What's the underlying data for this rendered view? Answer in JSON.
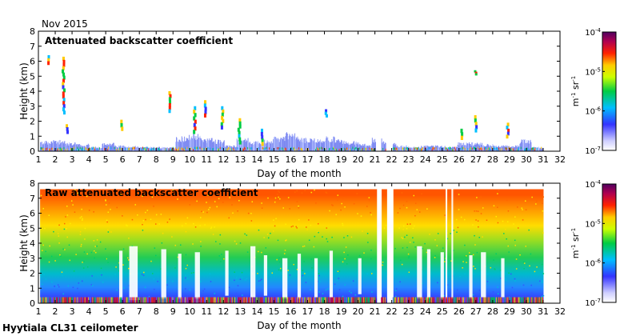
{
  "header": {
    "period": "Nov 2015"
  },
  "footer": {
    "instrument": "Hyytiala CL31 ceilometer"
  },
  "chart_data": [
    {
      "type": "heatmap",
      "title": "Attenuated backscatter coefficient",
      "xlabel": "Day of the month",
      "ylabel": "Height (km)",
      "xlim": [
        1,
        32
      ],
      "ylim": [
        0,
        8
      ],
      "x_ticks": [
        1,
        2,
        3,
        4,
        5,
        6,
        7,
        8,
        9,
        10,
        11,
        12,
        13,
        14,
        15,
        16,
        17,
        18,
        19,
        20,
        21,
        22,
        23,
        24,
        25,
        26,
        27,
        28,
        29,
        30,
        31,
        32
      ],
      "y_ticks": [
        0,
        1,
        2,
        3,
        4,
        5,
        6,
        7,
        8
      ],
      "colorbar": {
        "scale": "log",
        "units": "m⁻¹ sr⁻¹",
        "unit_base": "m",
        "unit_base_exp": "-1",
        "unit_sr": "sr",
        "unit_sr_exp": "-1",
        "ticks": [
          {
            "base": "10",
            "exp": "-4"
          },
          {
            "base": "10",
            "exp": "-5"
          },
          {
            "base": "10",
            "exp": "-6"
          },
          {
            "base": "10",
            "exp": "-7"
          }
        ]
      },
      "data_coverage": {
        "start_day": 1.1,
        "end_day": 31.0,
        "gap_days": [
          [
            21.05,
            21.35
          ],
          [
            21.65,
            22.05
          ]
        ]
      },
      "surface_layer_top_km": [
        0.7,
        0.75,
        0.6,
        0.5,
        0.3,
        0.6,
        0.4,
        0.35,
        0.3,
        0.3,
        0.3,
        1.0,
        1.2,
        0.9,
        0.8,
        0.4,
        0.9,
        0.7,
        0.8,
        1.0,
        1.3,
        0.9,
        0.9,
        1.0,
        0.8,
        0.7,
        0.5,
        0.9,
        0.6,
        0.4,
        0.3,
        0.4,
        0.4,
        0.3,
        0.6,
        0.6,
        0.5,
        0.4,
        0.4,
        0.8,
        0.3
      ],
      "features": [
        {
          "day": 1.55,
          "bottom_km": 5.8,
          "top_km": 6.4
        },
        {
          "day": 2.45,
          "bottom_km": 2.5,
          "top_km": 6.3
        },
        {
          "day": 2.65,
          "bottom_km": 1.2,
          "top_km": 1.8
        },
        {
          "day": 5.9,
          "bottom_km": 1.4,
          "top_km": 2.1
        },
        {
          "day": 8.75,
          "bottom_km": 2.6,
          "top_km": 4.0
        },
        {
          "day": 10.25,
          "bottom_km": 1.2,
          "top_km": 3.0
        },
        {
          "day": 10.9,
          "bottom_km": 2.3,
          "top_km": 3.4
        },
        {
          "day": 11.9,
          "bottom_km": 1.5,
          "top_km": 3.0
        },
        {
          "day": 12.9,
          "bottom_km": 0.5,
          "top_km": 2.2
        },
        {
          "day": 14.25,
          "bottom_km": 0.4,
          "top_km": 1.5
        },
        {
          "day": 18.05,
          "bottom_km": 2.3,
          "top_km": 2.8
        },
        {
          "day": 26.15,
          "bottom_km": 0.8,
          "top_km": 1.5
        },
        {
          "day": 26.95,
          "bottom_km": 1.3,
          "top_km": 2.4
        },
        {
          "day": 26.95,
          "bottom_km": 5.1,
          "top_km": 5.4
        },
        {
          "day": 28.85,
          "bottom_km": 0.9,
          "top_km": 1.9
        }
      ]
    },
    {
      "type": "heatmap",
      "title": "Raw attenuated backscatter coefficient",
      "xlabel": "Day of the month",
      "ylabel": "Height (km)",
      "xlim": [
        1,
        32
      ],
      "ylim": [
        0,
        8
      ],
      "x_ticks": [
        1,
        2,
        3,
        4,
        5,
        6,
        7,
        8,
        9,
        10,
        11,
        12,
        13,
        14,
        15,
        16,
        17,
        18,
        19,
        20,
        21,
        22,
        23,
        24,
        25,
        26,
        27,
        28,
        29,
        30,
        31,
        32
      ],
      "y_ticks": [
        0,
        1,
        2,
        3,
        4,
        5,
        6,
        7,
        8
      ],
      "colorbar": {
        "scale": "log",
        "units": "m⁻¹ sr⁻¹",
        "unit_base": "m",
        "unit_base_exp": "-1",
        "unit_sr": "sr",
        "unit_sr_exp": "-1",
        "ticks": [
          {
            "base": "10",
            "exp": "-4"
          },
          {
            "base": "10",
            "exp": "-5"
          },
          {
            "base": "10",
            "exp": "-6"
          },
          {
            "base": "10",
            "exp": "-7"
          }
        ]
      },
      "data_coverage": {
        "start_day": 1.1,
        "end_day": 31.0,
        "gap_days": [
          [
            21.05,
            21.35
          ],
          [
            21.65,
            22.05
          ]
        ]
      },
      "profile": "noise increasing with height: red/orange near 6-7.5 km, yellow/green mid-levels, blue in the lowest 1 km",
      "white_gaps": [
        {
          "day_start": 5.8,
          "day_end": 6.0,
          "bottom_km": 0.3,
          "top_km": 3.5
        },
        {
          "day_start": 6.4,
          "day_end": 6.9,
          "bottom_km": 0.2,
          "top_km": 3.8
        },
        {
          "day_start": 8.3,
          "day_end": 8.6,
          "bottom_km": 0.3,
          "top_km": 3.6
        },
        {
          "day_start": 9.3,
          "day_end": 9.5,
          "bottom_km": 0.3,
          "top_km": 3.3
        },
        {
          "day_start": 10.3,
          "day_end": 10.6,
          "bottom_km": 0.3,
          "top_km": 3.4
        },
        {
          "day_start": 12.1,
          "day_end": 12.3,
          "bottom_km": 0.5,
          "top_km": 3.5
        },
        {
          "day_start": 13.6,
          "day_end": 13.9,
          "bottom_km": 0.4,
          "top_km": 3.8
        },
        {
          "day_start": 14.4,
          "day_end": 14.6,
          "bottom_km": 0.5,
          "top_km": 3.2
        },
        {
          "day_start": 15.5,
          "day_end": 15.8,
          "bottom_km": 0.3,
          "top_km": 3.0
        },
        {
          "day_start": 16.4,
          "day_end": 16.6,
          "bottom_km": 0.3,
          "top_km": 3.3
        },
        {
          "day_start": 17.4,
          "day_end": 17.6,
          "bottom_km": 0.4,
          "top_km": 3.0
        },
        {
          "day_start": 18.3,
          "day_end": 18.5,
          "bottom_km": 0.4,
          "top_km": 3.5
        },
        {
          "day_start": 20.0,
          "day_end": 20.2,
          "bottom_km": 0.6,
          "top_km": 3.0
        },
        {
          "day_start": 23.5,
          "day_end": 23.8,
          "bottom_km": 0.3,
          "top_km": 3.8
        },
        {
          "day_start": 24.1,
          "day_end": 24.3,
          "bottom_km": 0.3,
          "top_km": 3.6
        },
        {
          "day_start": 24.9,
          "day_end": 25.1,
          "bottom_km": 0.3,
          "top_km": 3.4
        },
        {
          "day_start": 25.2,
          "day_end": 25.3,
          "bottom_km": 0.3,
          "top_km": 7.6
        },
        {
          "day_start": 25.55,
          "day_end": 25.65,
          "bottom_km": 0.3,
          "top_km": 7.6
        },
        {
          "day_start": 26.6,
          "day_end": 26.8,
          "bottom_km": 0.3,
          "top_km": 3.2
        },
        {
          "day_start": 27.3,
          "day_end": 27.6,
          "bottom_km": 0.4,
          "top_km": 3.4
        },
        {
          "day_start": 28.5,
          "day_end": 28.7,
          "bottom_km": 0.4,
          "top_km": 3.0
        }
      ]
    }
  ]
}
